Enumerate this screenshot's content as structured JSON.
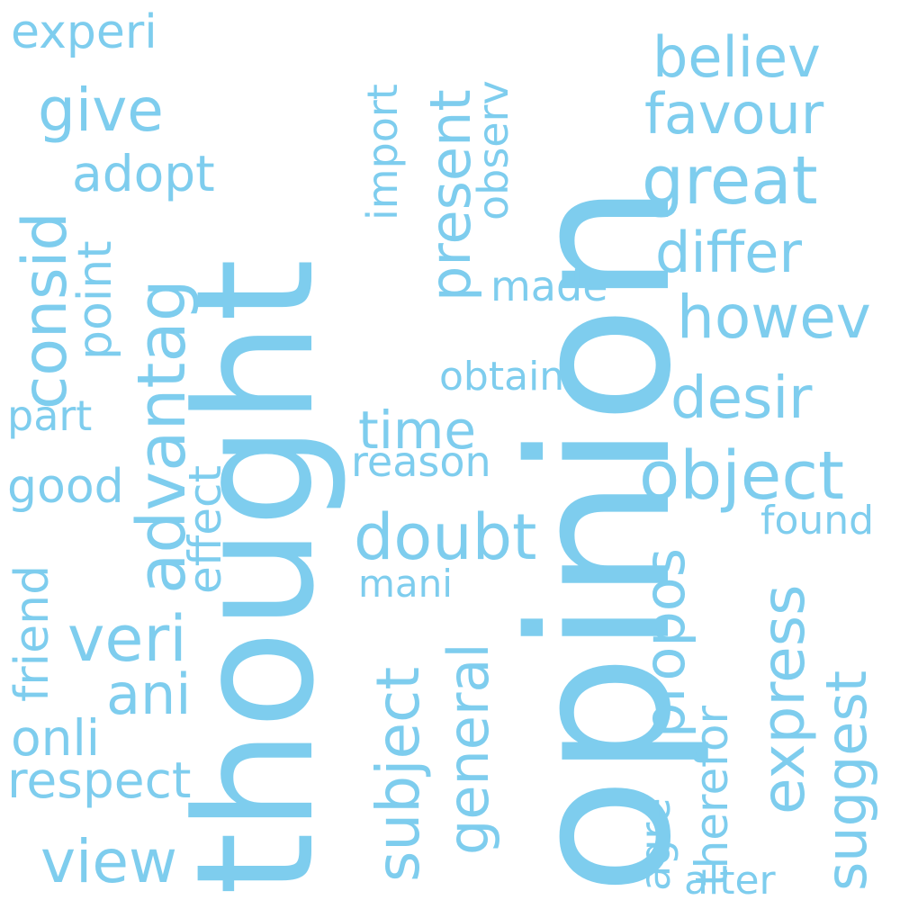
{
  "cloud": {
    "color": "#7ecdee",
    "words": [
      {
        "text": "opinion"
      },
      {
        "text": "thought"
      },
      {
        "text": "experi"
      },
      {
        "text": "give"
      },
      {
        "text": "adopt"
      },
      {
        "text": "consid"
      },
      {
        "text": "point"
      },
      {
        "text": "advantag"
      },
      {
        "text": "part"
      },
      {
        "text": "good"
      },
      {
        "text": "effect"
      },
      {
        "text": "friend"
      },
      {
        "text": "veri"
      },
      {
        "text": "ani"
      },
      {
        "text": "onli"
      },
      {
        "text": "respect"
      },
      {
        "text": "view"
      },
      {
        "text": "import"
      },
      {
        "text": "present"
      },
      {
        "text": "observ"
      },
      {
        "text": "made"
      },
      {
        "text": "obtain"
      },
      {
        "text": "time"
      },
      {
        "text": "reason"
      },
      {
        "text": "doubt"
      },
      {
        "text": "mani"
      },
      {
        "text": "subject"
      },
      {
        "text": "general"
      },
      {
        "text": "believ"
      },
      {
        "text": "favour"
      },
      {
        "text": "great"
      },
      {
        "text": "differ"
      },
      {
        "text": "howev"
      },
      {
        "text": "desir"
      },
      {
        "text": "object"
      },
      {
        "text": "found"
      },
      {
        "text": "propos"
      },
      {
        "text": "express"
      },
      {
        "text": "suggest"
      },
      {
        "text": "therefor"
      },
      {
        "text": "agre"
      },
      {
        "text": "alter"
      }
    ]
  }
}
